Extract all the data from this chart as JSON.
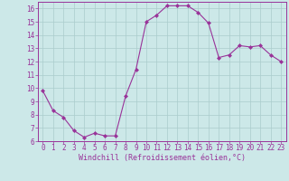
{
  "x": [
    0,
    1,
    2,
    3,
    4,
    5,
    6,
    7,
    8,
    9,
    10,
    11,
    12,
    13,
    14,
    15,
    16,
    17,
    18,
    19,
    20,
    21,
    22,
    23
  ],
  "y": [
    9.8,
    8.3,
    7.8,
    6.8,
    6.3,
    6.6,
    6.4,
    6.4,
    9.4,
    11.4,
    15.0,
    15.5,
    16.2,
    16.2,
    16.2,
    15.7,
    14.9,
    12.3,
    12.5,
    13.2,
    13.1,
    13.2,
    12.5,
    12.0
  ],
  "line_color": "#993399",
  "marker": "D",
  "marker_size": 2.0,
  "bg_color": "#cce8e8",
  "grid_color": "#aacccc",
  "xlabel": "Windchill (Refroidissement éolien,°C)",
  "xlabel_color": "#993399",
  "tick_color": "#993399",
  "ylim": [
    6,
    16.5
  ],
  "xlim": [
    -0.5,
    23.5
  ],
  "yticks": [
    6,
    7,
    8,
    9,
    10,
    11,
    12,
    13,
    14,
    15,
    16
  ],
  "xticks": [
    0,
    1,
    2,
    3,
    4,
    5,
    6,
    7,
    8,
    9,
    10,
    11,
    12,
    13,
    14,
    15,
    16,
    17,
    18,
    19,
    20,
    21,
    22,
    23
  ],
  "spine_color": "#993399",
  "font_size": 5.5,
  "xlabel_fontsize": 6.0,
  "lw": 0.8
}
